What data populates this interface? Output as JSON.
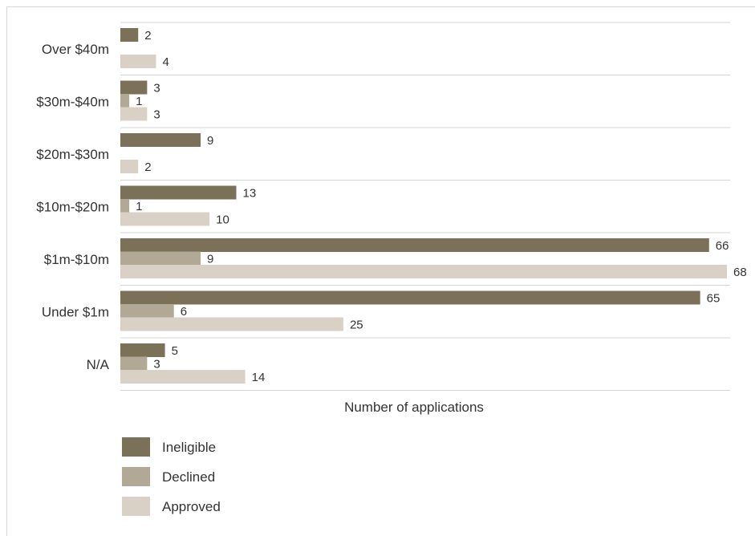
{
  "chart_data": {
    "type": "bar",
    "orientation": "horizontal",
    "categories": [
      "Over $40m",
      "$30m-$40m",
      "$20m-$30m",
      "$10m-$20m",
      "$1m-$10m",
      "Under $1m",
      "N/A"
    ],
    "series": [
      {
        "name": "Ineligible",
        "color": "#7b7058",
        "values": [
          2,
          3,
          9,
          13,
          66,
          65,
          5
        ]
      },
      {
        "name": "Declined",
        "color": "#b1a995",
        "values": [
          null,
          1,
          null,
          1,
          9,
          6,
          3
        ]
      },
      {
        "name": "Approved",
        "color": "#d9d1c5",
        "values": [
          4,
          3,
          2,
          10,
          68,
          25,
          14
        ]
      }
    ],
    "xlabel": "Number of applications",
    "xlim": [
      0,
      68
    ],
    "grid": "horizontal separators between categories",
    "legend_position": "bottom-left"
  }
}
